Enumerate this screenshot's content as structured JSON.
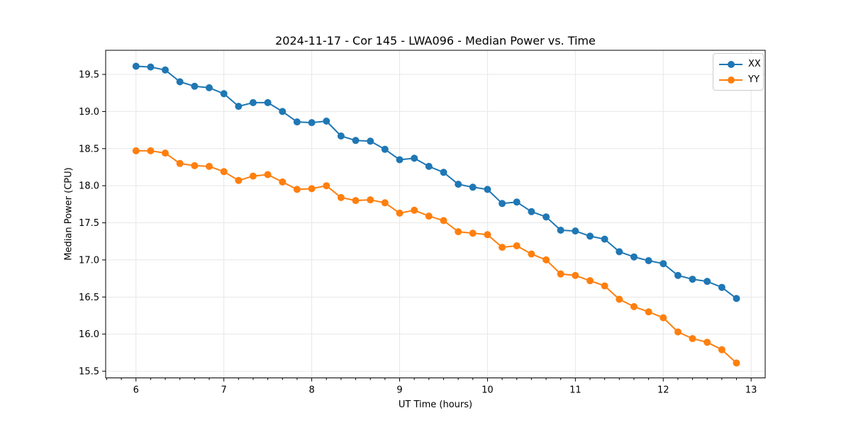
{
  "chart_data": {
    "type": "line",
    "title": "2024-11-17 - Cor 145 - LWA096 - Median Power vs. Time",
    "xlabel": "UT Time (hours)",
    "ylabel": "Median Power (CPU)",
    "xlim": [
      5.655,
      13.16
    ],
    "ylim": [
      15.41,
      19.825
    ],
    "xticks": [
      6,
      7,
      8,
      9,
      10,
      11,
      12,
      13
    ],
    "yticks": [
      15.5,
      16.0,
      16.5,
      17.0,
      17.5,
      18.0,
      18.5,
      19.0,
      19.5
    ],
    "grid": true,
    "legend_position": "upper right",
    "marker": "circle",
    "x": [
      6.0,
      6.167,
      6.333,
      6.5,
      6.667,
      6.833,
      7.0,
      7.167,
      7.333,
      7.5,
      7.667,
      7.833,
      8.0,
      8.167,
      8.333,
      8.5,
      8.667,
      8.833,
      9.0,
      9.167,
      9.333,
      9.5,
      9.667,
      9.833,
      10.0,
      10.167,
      10.333,
      10.5,
      10.667,
      10.833,
      11.0,
      11.167,
      11.333,
      11.5,
      11.667,
      11.833,
      12.0,
      12.167,
      12.333,
      12.5,
      12.667,
      12.833
    ],
    "series": [
      {
        "name": "XX",
        "color": "#1f77b4",
        "values": [
          19.61,
          19.6,
          19.56,
          19.4,
          19.34,
          19.32,
          19.24,
          19.07,
          19.12,
          19.12,
          19.0,
          18.86,
          18.85,
          18.87,
          18.67,
          18.61,
          18.6,
          18.49,
          18.35,
          18.37,
          18.26,
          18.18,
          18.02,
          17.98,
          17.95,
          17.76,
          17.78,
          17.65,
          17.58,
          17.4,
          17.39,
          17.32,
          17.28,
          17.11,
          17.04,
          16.99,
          16.95,
          16.79,
          16.74,
          16.71,
          16.63,
          16.48
        ]
      },
      {
        "name": "YY",
        "color": "#ff7f0e",
        "values": [
          18.47,
          18.47,
          18.44,
          18.3,
          18.27,
          18.26,
          18.19,
          18.07,
          18.13,
          18.15,
          18.05,
          17.95,
          17.96,
          18.0,
          17.84,
          17.8,
          17.81,
          17.77,
          17.63,
          17.67,
          17.59,
          17.53,
          17.38,
          17.36,
          17.34,
          17.17,
          17.19,
          17.08,
          17.0,
          16.81,
          16.79,
          16.72,
          16.65,
          16.47,
          16.37,
          16.3,
          16.22,
          16.03,
          15.94,
          15.89,
          15.79,
          15.61
        ]
      }
    ]
  }
}
